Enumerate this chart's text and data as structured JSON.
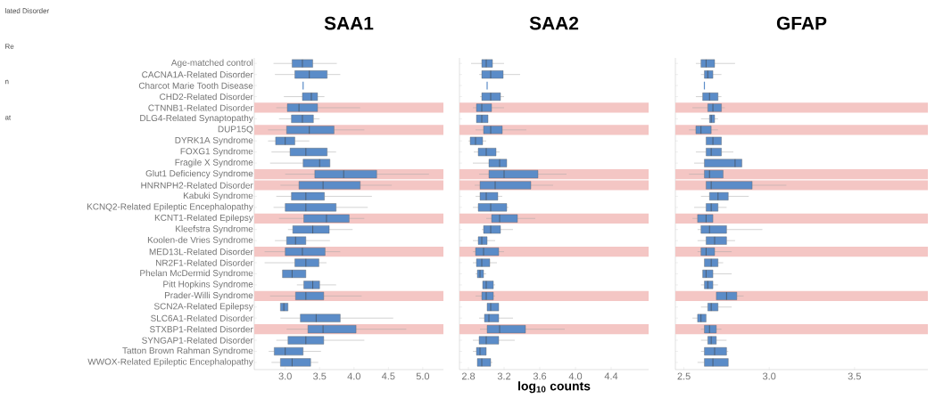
{
  "chart_data": [
    {
      "type": "box",
      "title": "SAA1",
      "orientation": "horizontal",
      "annotations": [
        "lated Disorder",
        "Re",
        "n",
        "at"
      ],
      "categories": [
        "Age-matched control",
        "CACNA1A-Related Disorder",
        "Charcot Marie Tooth Disease",
        "CHD2-Related Disorder",
        "CTNNB1-Related Disorder",
        "DLG4-Related Synaptopathy",
        "DUP15Q",
        "DYRK1A Syndrome",
        "FOXG1 Syndrome",
        "Fragile X Syndrome",
        "Glut1 Deficiency Syndrome",
        "HNRNPH2-Related Disorder",
        "Kabuki Syndrome",
        "KCNQ2-Related Epileptic Encephalopathy",
        "KCNT1-Related Epilepsy",
        "Kleefstra Syndrome",
        "Koolen-de Vries Syndrome",
        "MED13L-Related Disorder",
        "NR2F1-Related Disorder",
        "Phelan McDermid Syndrome",
        "Pitt Hopkins Syndrome",
        "Prader-Willi Syndrome",
        "SCN2A-Related Epilepsy",
        "SLC6A1-Related Disorder",
        "STXBP1-Related Disorder",
        "SYNGAP1-Related Disorder",
        "Tatton Brown Rahman Syndrome",
        "WWOX-Related Epileptic Encephalopathy"
      ],
      "xlim": [
        2.55,
        5.3
      ],
      "xticks": [
        {
          "value": 3,
          "label": "3.0"
        },
        3.5,
        {
          "value": 4,
          "label": "4.0"
        },
        4.5,
        {
          "value": 5,
          "label": "5.0"
        }
      ],
      "bands": [
        {
          "axis": "y",
          "from": "CTNNB1-Related Disorder",
          "to": "CTNNB1-Related Disorder",
          "color": "#f4c6c4"
        },
        {
          "axis": "y",
          "from": "DUP15Q",
          "to": "DUP15Q",
          "color": "#f4c6c4"
        },
        {
          "axis": "y",
          "from": "Glut1 Deficiency Syndrome",
          "to": "Glut1 Deficiency Syndrome",
          "color": "#f4c6c4"
        },
        {
          "axis": "y",
          "from": "HNRNPH2-Related Disorder",
          "to": "HNRNPH2-Related Disorder",
          "color": "#f4c6c4"
        },
        {
          "axis": "y",
          "from": "KCNT1-Related Epilepsy",
          "to": "KCNT1-Related Epilepsy",
          "color": "#f4c6c4"
        },
        {
          "axis": "y",
          "from": "MED13L-Related Disorder",
          "to": "MED13L-Related Disorder",
          "color": "#f4c6c4"
        },
        {
          "axis": "y",
          "from": "Prader-Willi Syndrome",
          "to": "Prader-Willi Syndrome",
          "color": "#f4c6c4"
        },
        {
          "axis": "y",
          "from": "STXBP1-Related Disorder",
          "to": "STXBP1-Related Disorder",
          "color": "#f4c6c4"
        }
      ],
      "series": [
        {
          "color": "#5b8cc8",
          "boxes": [
            {
              "low": 2.83,
              "q1": 3.1,
              "median": 3.25,
              "q3": 3.4,
              "high": 3.75
            },
            {
              "low": 2.85,
              "q1": 3.14,
              "median": 3.35,
              "q3": 3.61,
              "high": 3.8
            },
            {
              "low": 3.26,
              "q1": 3.26,
              "median": 3.26,
              "q3": 3.26,
              "high": 3.26
            },
            {
              "low": 2.98,
              "q1": 3.25,
              "median": 3.38,
              "q3": 3.47,
              "high": 3.57
            },
            {
              "low": 2.87,
              "q1": 3.03,
              "median": 3.2,
              "q3": 3.47,
              "high": 4.09
            },
            {
              "low": 2.91,
              "q1": 3.09,
              "median": 3.25,
              "q3": 3.41,
              "high": 3.5
            },
            {
              "low": 2.75,
              "q1": 3.02,
              "median": 3.35,
              "q3": 3.71,
              "high": 4.15
            },
            {
              "low": 2.75,
              "q1": 2.86,
              "median": 3.0,
              "q3": 3.14,
              "high": 3.35
            },
            {
              "low": 2.8,
              "q1": 3.07,
              "median": 3.3,
              "q3": 3.61,
              "high": 3.74
            },
            {
              "low": 2.78,
              "q1": 3.26,
              "median": 3.5,
              "q3": 3.65,
              "high": 3.65
            },
            {
              "low": 3.0,
              "q1": 3.43,
              "median": 3.85,
              "q3": 4.33,
              "high": 5.09
            },
            {
              "low": 2.93,
              "q1": 3.2,
              "median": 3.55,
              "q3": 4.09,
              "high": 4.55
            },
            {
              "low": 2.87,
              "q1": 3.09,
              "median": 3.3,
              "q3": 3.57,
              "high": 4.26
            },
            {
              "low": 2.83,
              "q1": 3.0,
              "median": 3.3,
              "q3": 3.74,
              "high": 4.2
            },
            {
              "low": 2.91,
              "q1": 3.27,
              "median": 3.6,
              "q3": 3.93,
              "high": 4.15
            },
            {
              "low": 3.04,
              "q1": 3.11,
              "median": 3.4,
              "q3": 3.64,
              "high": 3.98
            },
            {
              "low": 2.85,
              "q1": 3.02,
              "median": 3.15,
              "q3": 3.3,
              "high": 3.65
            },
            {
              "low": 2.7,
              "q1": 3.0,
              "median": 3.25,
              "q3": 3.58,
              "high": 3.8
            },
            {
              "low": 2.7,
              "q1": 3.14,
              "median": 3.3,
              "q3": 3.49,
              "high": 3.6
            },
            {
              "low": 2.96,
              "q1": 2.96,
              "median": 3.1,
              "q3": 3.3,
              "high": 3.3
            },
            {
              "low": 3.17,
              "q1": 3.27,
              "median": 3.4,
              "q3": 3.5,
              "high": 3.74
            },
            {
              "low": 2.78,
              "q1": 3.15,
              "median": 3.3,
              "q3": 3.56,
              "high": 4.11
            },
            {
              "low": 2.93,
              "q1": 2.93,
              "median": 2.98,
              "q3": 3.04,
              "high": 3.04
            },
            {
              "low": 2.93,
              "q1": 3.22,
              "median": 3.45,
              "q3": 3.8,
              "high": 4.57
            },
            {
              "low": 3.02,
              "q1": 3.33,
              "median": 3.55,
              "q3": 4.03,
              "high": 4.76
            },
            {
              "low": 2.87,
              "q1": 3.04,
              "median": 3.3,
              "q3": 3.56,
              "high": 4.15
            },
            {
              "low": 2.76,
              "q1": 2.84,
              "median": 3.0,
              "q3": 3.26,
              "high": 3.52
            },
            {
              "low": 2.8,
              "q1": 2.93,
              "median": 3.1,
              "q3": 3.37,
              "high": 3.48
            }
          ]
        }
      ]
    },
    {
      "type": "box",
      "title": "SAA2",
      "xlabel": "log$_{10}$ counts",
      "orientation": "horizontal",
      "tick_labels": "x",
      "categories": [
        "Age-matched control",
        "CACNA1A-Related Disorder",
        "Charcot Marie Tooth Disease",
        "CHD2-Related Disorder",
        "CTNNB1-Related Disorder",
        "DLG4-Related Synaptopathy",
        "DUP15Q",
        "DYRK1A Syndrome",
        "FOXG1 Syndrome",
        "Fragile X Syndrome",
        "Glut1 Deficiency Syndrome",
        "HNRNPH2-Related Disorder",
        "Kabuki Syndrome",
        "KCNQ2-Related Epileptic Encephalopathy",
        "KCNT1-Related Epilepsy",
        "Kleefstra Syndrome",
        "Koolen-de Vries Syndrome",
        "MED13L-Related Disorder",
        "NR2F1-Related Disorder",
        "Phelan McDermid Syndrome",
        "Pitt Hopkins Syndrome",
        "Prader-Willi Syndrome",
        "SCN2A-Related Epilepsy",
        "SLC6A1-Related Disorder",
        "STXBP1-Related Disorder",
        "SYNGAP1-Related Disorder",
        "Tatton Brown Rahman Syndrome",
        "WWOX-Related Epileptic Encephalopathy"
      ],
      "xlim": [
        2.7,
        4.82
      ],
      "xticks": [
        2.8,
        3.2,
        3.6,
        {
          "value": 4,
          "label": "4.0"
        },
        4.4
      ],
      "bands": [
        {
          "axis": "y",
          "from": "CTNNB1-Related Disorder",
          "to": "CTNNB1-Related Disorder",
          "color": "#f4c6c4"
        },
        {
          "axis": "y",
          "from": "DUP15Q",
          "to": "DUP15Q",
          "color": "#f4c6c4"
        },
        {
          "axis": "y",
          "from": "Glut1 Deficiency Syndrome",
          "to": "Glut1 Deficiency Syndrome",
          "color": "#f4c6c4"
        },
        {
          "axis": "y",
          "from": "HNRNPH2-Related Disorder",
          "to": "HNRNPH2-Related Disorder",
          "color": "#f4c6c4"
        },
        {
          "axis": "y",
          "from": "KCNT1-Related Epilepsy",
          "to": "KCNT1-Related Epilepsy",
          "color": "#f4c6c4"
        },
        {
          "axis": "y",
          "from": "MED13L-Related Disorder",
          "to": "MED13L-Related Disorder",
          "color": "#f4c6c4"
        },
        {
          "axis": "y",
          "from": "Prader-Willi Syndrome",
          "to": "Prader-Willi Syndrome",
          "color": "#f4c6c4"
        },
        {
          "axis": "y",
          "from": "STXBP1-Related Disorder",
          "to": "STXBP1-Related Disorder",
          "color": "#f4c6c4"
        }
      ],
      "series": [
        {
          "color": "#5b8cc8",
          "boxes": [
            {
              "low": 2.83,
              "q1": 2.95,
              "median": 3.0,
              "q3": 3.07,
              "high": 3.2
            },
            {
              "low": 2.92,
              "q1": 2.95,
              "median": 3.05,
              "q3": 3.19,
              "high": 3.38
            },
            {
              "low": 3.01,
              "q1": 3.01,
              "median": 3.01,
              "q3": 3.01,
              "high": 3.01
            },
            {
              "low": 2.93,
              "q1": 2.95,
              "median": 3.05,
              "q3": 3.16,
              "high": 3.2
            },
            {
              "low": 2.85,
              "q1": 2.89,
              "median": 2.95,
              "q3": 3.06,
              "high": 3.2
            },
            {
              "low": 2.89,
              "q1": 2.89,
              "median": 2.95,
              "q3": 3.02,
              "high": 3.02
            },
            {
              "low": 2.88,
              "q1": 2.97,
              "median": 3.05,
              "q3": 3.18,
              "high": 3.45
            },
            {
              "low": 2.8,
              "q1": 2.82,
              "median": 2.88,
              "q3": 2.96,
              "high": 3.0
            },
            {
              "low": 2.86,
              "q1": 2.91,
              "median": 3.0,
              "q3": 3.11,
              "high": 3.15
            },
            {
              "low": 2.85,
              "q1": 3.03,
              "median": 3.15,
              "q3": 3.23,
              "high": 3.23
            },
            {
              "low": 2.92,
              "q1": 3.03,
              "median": 3.2,
              "q3": 3.58,
              "high": 3.9
            },
            {
              "low": 2.87,
              "q1": 2.93,
              "median": 3.1,
              "q3": 3.5,
              "high": 3.75
            },
            {
              "low": 2.88,
              "q1": 2.93,
              "median": 3.0,
              "q3": 3.13,
              "high": 3.18
            },
            {
              "low": 2.85,
              "q1": 2.91,
              "median": 3.05,
              "q3": 3.23,
              "high": 3.25
            },
            {
              "low": 3.0,
              "q1": 3.06,
              "median": 3.15,
              "q3": 3.35,
              "high": 3.55
            },
            {
              "low": 2.95,
              "q1": 2.97,
              "median": 3.05,
              "q3": 3.16,
              "high": 3.3
            },
            {
              "low": 2.85,
              "q1": 2.91,
              "median": 2.95,
              "q3": 3.01,
              "high": 3.1
            },
            {
              "low": 2.85,
              "q1": 2.88,
              "median": 2.97,
              "q3": 3.14,
              "high": 3.2
            },
            {
              "low": 2.85,
              "q1": 2.89,
              "median": 2.95,
              "q3": 3.04,
              "high": 3.12
            },
            {
              "low": 2.88,
              "q1": 2.9,
              "median": 2.93,
              "q3": 2.97,
              "high": 3.0
            },
            {
              "low": 2.96,
              "q1": 2.96,
              "median": 3.0,
              "q3": 3.08,
              "high": 3.1
            },
            {
              "low": 2.88,
              "q1": 2.95,
              "median": 3.0,
              "q3": 3.08,
              "high": 3.1
            },
            {
              "low": 3.01,
              "q1": 3.01,
              "median": 3.05,
              "q3": 3.14,
              "high": 3.14
            },
            {
              "low": 2.92,
              "q1": 2.98,
              "median": 3.03,
              "q3": 3.14,
              "high": 3.3
            },
            {
              "low": 2.93,
              "q1": 3.01,
              "median": 3.15,
              "q3": 3.44,
              "high": 3.88
            },
            {
              "low": 2.85,
              "q1": 2.92,
              "median": 3.0,
              "q3": 3.14,
              "high": 3.32
            },
            {
              "low": 2.85,
              "q1": 2.89,
              "median": 2.93,
              "q3": 3.0,
              "high": 3.0
            },
            {
              "low": 2.9,
              "q1": 2.9,
              "median": 2.95,
              "q3": 3.05,
              "high": 3.07
            }
          ]
        }
      ]
    },
    {
      "type": "box",
      "title": "GFAP",
      "orientation": "horizontal",
      "tick_labels": "x",
      "categories": [
        "Age-matched control",
        "CACNA1A-Related Disorder",
        "Charcot Marie Tooth Disease",
        "CHD2-Related Disorder",
        "CTNNB1-Related Disorder",
        "DLG4-Related Synaptopathy",
        "DUP15Q",
        "DYRK1A Syndrome",
        "FOXG1 Syndrome",
        "Fragile X Syndrome",
        "Glut1 Deficiency Syndrome",
        "HNRNPH2-Related Disorder",
        "Kabuki Syndrome",
        "KCNQ2-Related Epileptic Encephalopathy",
        "KCNT1-Related Epilepsy",
        "Kleefstra Syndrome",
        "Koolen-de Vries Syndrome",
        "MED13L-Related Disorder",
        "NR2F1-Related Disorder",
        "Phelan McDermid Syndrome",
        "Pitt Hopkins Syndrome",
        "Prader-Willi Syndrome",
        "SCN2A-Related Epilepsy",
        "SLC6A1-Related Disorder",
        "STXBP1-Related Disorder",
        "SYNGAP1-Related Disorder",
        "Tatton Brown Rahman Syndrome",
        "WWOX-Related Epileptic Encephalopathy"
      ],
      "xlim": [
        2.45,
        3.93
      ],
      "xticks": [
        2.5,
        {
          "value": 3,
          "label": "3.0"
        },
        3.5
      ],
      "bands": [
        {
          "axis": "y",
          "from": "CTNNB1-Related Disorder",
          "to": "CTNNB1-Related Disorder",
          "color": "#f4c6c4"
        },
        {
          "axis": "y",
          "from": "DUP15Q",
          "to": "DUP15Q",
          "color": "#f4c6c4"
        },
        {
          "axis": "y",
          "from": "Glut1 Deficiency Syndrome",
          "to": "Glut1 Deficiency Syndrome",
          "color": "#f4c6c4"
        },
        {
          "axis": "y",
          "from": "HNRNPH2-Related Disorder",
          "to": "HNRNPH2-Related Disorder",
          "color": "#f4c6c4"
        },
        {
          "axis": "y",
          "from": "KCNT1-Related Epilepsy",
          "to": "KCNT1-Related Epilepsy",
          "color": "#f4c6c4"
        },
        {
          "axis": "y",
          "from": "MED13L-Related Disorder",
          "to": "MED13L-Related Disorder",
          "color": "#f4c6c4"
        },
        {
          "axis": "y",
          "from": "Prader-Willi Syndrome",
          "to": "Prader-Willi Syndrome",
          "color": "#f4c6c4"
        },
        {
          "axis": "y",
          "from": "STXBP1-Related Disorder",
          "to": "STXBP1-Related Disorder",
          "color": "#f4c6c4"
        }
      ],
      "series": [
        {
          "color": "#5b8cc8",
          "boxes": [
            {
              "low": 2.57,
              "q1": 2.6,
              "median": 2.63,
              "q3": 2.68,
              "high": 2.8
            },
            {
              "low": 2.6,
              "q1": 2.62,
              "median": 2.64,
              "q3": 2.67,
              "high": 2.72
            },
            {
              "low": 2.62,
              "q1": 2.62,
              "median": 2.62,
              "q3": 2.62,
              "high": 2.62
            },
            {
              "low": 2.57,
              "q1": 2.61,
              "median": 2.65,
              "q3": 2.7,
              "high": 2.72
            },
            {
              "low": 2.55,
              "q1": 2.64,
              "median": 2.67,
              "q3": 2.72,
              "high": 2.74
            },
            {
              "low": 2.6,
              "q1": 2.65,
              "median": 2.66,
              "q3": 2.68,
              "high": 2.7
            },
            {
              "low": 2.53,
              "q1": 2.57,
              "median": 2.6,
              "q3": 2.66,
              "high": 2.7
            },
            {
              "low": 2.63,
              "q1": 2.63,
              "median": 2.67,
              "q3": 2.72,
              "high": 2.72
            },
            {
              "low": 2.57,
              "q1": 2.63,
              "median": 2.66,
              "q3": 2.72,
              "high": 2.79
            },
            {
              "low": 2.56,
              "q1": 2.62,
              "median": 2.8,
              "q3": 2.84,
              "high": 2.84
            },
            {
              "low": 2.53,
              "q1": 2.62,
              "median": 2.65,
              "q3": 2.73,
              "high": 2.73
            },
            {
              "low": 2.63,
              "q1": 2.63,
              "median": 2.66,
              "q3": 2.9,
              "high": 3.1
            },
            {
              "low": 2.6,
              "q1": 2.65,
              "median": 2.7,
              "q3": 2.76,
              "high": 2.88
            },
            {
              "low": 2.56,
              "q1": 2.63,
              "median": 2.66,
              "q3": 2.7,
              "high": 2.75
            },
            {
              "low": 2.55,
              "q1": 2.58,
              "median": 2.63,
              "q3": 2.67,
              "high": 2.67
            },
            {
              "low": 2.58,
              "q1": 2.6,
              "median": 2.65,
              "q3": 2.75,
              "high": 2.96
            },
            {
              "low": 2.58,
              "q1": 2.63,
              "median": 2.68,
              "q3": 2.75,
              "high": 2.8
            },
            {
              "low": 2.58,
              "q1": 2.6,
              "median": 2.63,
              "q3": 2.68,
              "high": 2.78
            },
            {
              "low": 2.62,
              "q1": 2.62,
              "median": 2.66,
              "q3": 2.7,
              "high": 2.73
            },
            {
              "low": 2.61,
              "q1": 2.61,
              "median": 2.63,
              "q3": 2.67,
              "high": 2.78
            },
            {
              "low": 2.6,
              "q1": 2.62,
              "median": 2.64,
              "q3": 2.67,
              "high": 2.7
            },
            {
              "low": 2.69,
              "q1": 2.69,
              "median": 2.75,
              "q3": 2.81,
              "high": 2.85
            },
            {
              "low": 2.6,
              "q1": 2.64,
              "median": 2.66,
              "q3": 2.7,
              "high": 2.78
            },
            {
              "low": 2.55,
              "q1": 2.58,
              "median": 2.6,
              "q3": 2.63,
              "high": 2.63
            },
            {
              "low": 2.6,
              "q1": 2.62,
              "median": 2.65,
              "q3": 2.69,
              "high": 2.72
            },
            {
              "low": 2.6,
              "q1": 2.64,
              "median": 2.66,
              "q3": 2.69,
              "high": 2.75
            },
            {
              "low": 2.6,
              "q1": 2.62,
              "median": 2.68,
              "q3": 2.75,
              "high": 2.76
            },
            {
              "low": 2.58,
              "q1": 2.62,
              "median": 2.67,
              "q3": 2.76,
              "high": 2.76
            }
          ]
        }
      ]
    }
  ]
}
